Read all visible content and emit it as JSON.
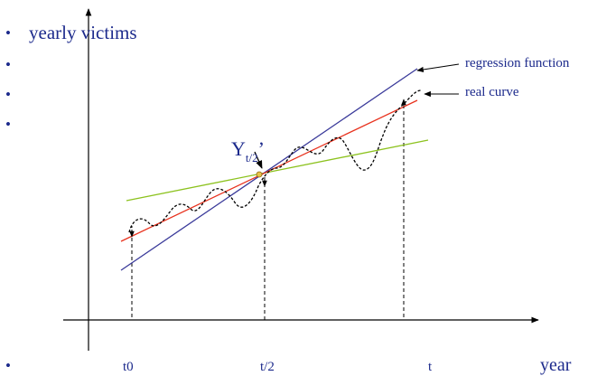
{
  "slide": {
    "y_axis_label": "yearly victims",
    "x_axis_label": "year",
    "bullet_glyph": "•"
  },
  "ticks": {
    "start": "t0",
    "middle": "t/2",
    "end": "t"
  },
  "legend": {
    "regression": "regression function",
    "real": "real curve"
  },
  "marker": {
    "symbol": "Y",
    "subscript": "t/2",
    "prime": "’"
  },
  "colors": {
    "text": "#1c2a8c",
    "regression_line": "#3a3a9a",
    "red_line": "#e8321e",
    "green_line": "#8cc21e",
    "real_curve": "#000000"
  }
}
